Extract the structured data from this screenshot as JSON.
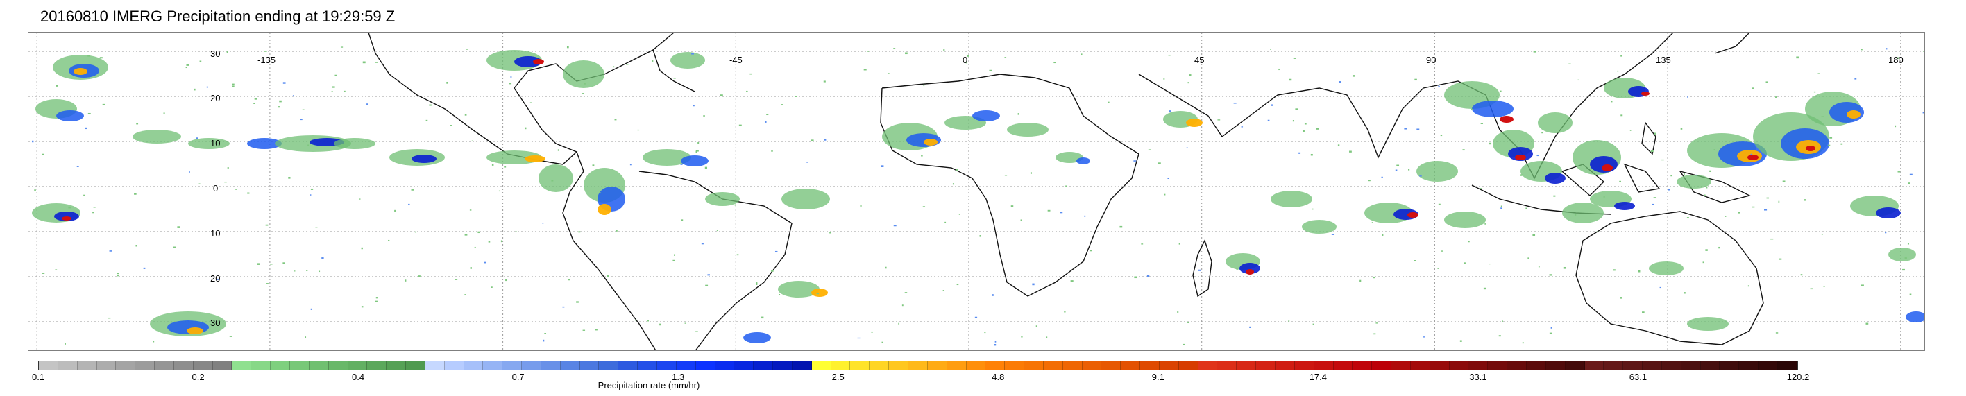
{
  "title": "20160810 IMERG Precipitation ending at 19:29:59 Z",
  "map": {
    "lon_labels": [
      "-135",
      "-45",
      "0",
      "45",
      "90",
      "135",
      "180"
    ],
    "lat_labels": [
      "30",
      "20",
      "10",
      "0",
      "10",
      "20",
      "30"
    ],
    "gridlines": "dotted",
    "coastline_color": "#000000"
  },
  "colorbar": {
    "label": "Precipitation rate (mm/hr)",
    "ticks": [
      "0.1",
      "0.2",
      "0.4",
      "0.7",
      "1.3",
      "2.5",
      "4.8",
      "9.1",
      "17.4",
      "33.1",
      "63.1",
      "120.2"
    ],
    "colors": [
      "#c4c4c4",
      "#bcbcbc",
      "#b4b4b4",
      "#acacac",
      "#a4a4a4",
      "#9c9c9c",
      "#959595",
      "#8e8e8e",
      "#878787",
      "#808080",
      "#8fe08f",
      "#87d887",
      "#7fd07f",
      "#78c878",
      "#70c070",
      "#69b869",
      "#62b062",
      "#5ba85b",
      "#55a155",
      "#4f9a4f",
      "#c6d8ff",
      "#b6ccff",
      "#a6c0fa",
      "#96b4f5",
      "#86a8f0",
      "#779cec",
      "#6890e8",
      "#5984e4",
      "#4b78e0",
      "#3d6cdc",
      "#2d5ae0",
      "#2450e8",
      "#1c46f0",
      "#143cf8",
      "#0c32ff",
      "#0a2cf0",
      "#0826e0",
      "#0620d0",
      "#041ac0",
      "#0214b0",
      "#ffff33",
      "#fff12e",
      "#ffe329",
      "#ffd524",
      "#ffc71f",
      "#ffb91a",
      "#ffab15",
      "#ff9d10",
      "#ff8f0b",
      "#ff8106",
      "#fb7b05",
      "#f77404",
      "#f36d04",
      "#ef6603",
      "#eb5f03",
      "#e75802",
      "#e35102",
      "#df4a01",
      "#db4301",
      "#d73c00",
      "#e0341a",
      "#dc2e18",
      "#d82816",
      "#d42214",
      "#d01c12",
      "#cc1610",
      "#c8100e",
      "#c40a0c",
      "#c0040a",
      "#bc0008",
      "#b00a0a",
      "#a40a0a",
      "#980a0a",
      "#8c0a0a",
      "#800a0a",
      "#740a0a",
      "#680a0a",
      "#5c0a0a",
      "#500a0a",
      "#440a0a",
      "#6a1a1a",
      "#641818",
      "#5e1616",
      "#581414",
      "#521212",
      "#4c1010",
      "#460e0e",
      "#400c0c",
      "#3a0a0a",
      "#340808"
    ],
    "highest_color": "#2a0606"
  }
}
